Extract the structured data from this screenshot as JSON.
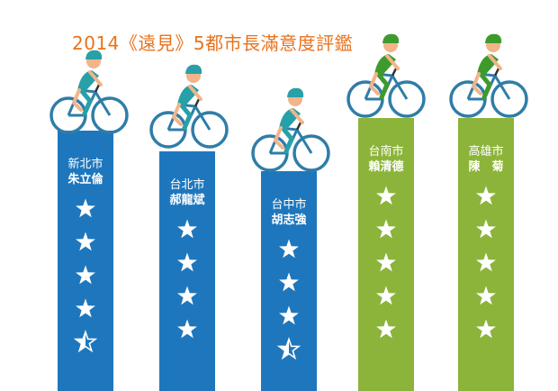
{
  "colors": {
    "title": "#e8731e",
    "blue_column": "#1e77bd",
    "green_column": "#8cb43a",
    "blue_rider": "#27a0a8",
    "green_rider": "#3f9a2e",
    "skin": "#f2b48a",
    "wheel": "#2f7da8",
    "star": "#ffffff"
  },
  "chart_data": {
    "type": "bar",
    "title": "2014《遠見》5都市長滿意度評鑑",
    "categories": [
      "新北市 朱立倫",
      "台北市 郝龍斌",
      "台中市 胡志強",
      "台南市 賴清德",
      "高雄市 陳　菊"
    ],
    "series": [
      {
        "values": [
          4.5,
          4,
          3.5,
          5,
          5
        ]
      }
    ],
    "ylim": [
      0,
      5
    ],
    "columns": [
      {
        "city": "新北市",
        "mayor": "朱立倫",
        "rating": 4.5,
        "group": "blue"
      },
      {
        "city": "台北市",
        "mayor": "郝龍斌",
        "rating": 4,
        "group": "blue"
      },
      {
        "city": "台中市",
        "mayor": "胡志強",
        "rating": 3.5,
        "group": "blue"
      },
      {
        "city": "台南市",
        "mayor": "賴清德",
        "rating": 5,
        "group": "green"
      },
      {
        "city": "高雄市",
        "mayor": "陳　菊",
        "rating": 5,
        "group": "green"
      }
    ],
    "icons": [
      "cyclist-icon",
      "star-icon",
      "half-star-icon"
    ],
    "grid": false,
    "legend": "none"
  }
}
